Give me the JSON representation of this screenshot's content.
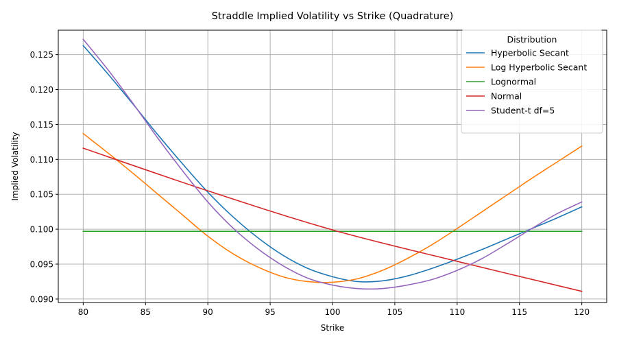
{
  "chart_data": {
    "type": "line",
    "title": "Straddle Implied Volatility vs Strike (Quadrature)",
    "xlabel": "Strike",
    "ylabel": "Implied Volatility",
    "xlim": [
      78,
      122
    ],
    "ylim": [
      0.0895,
      0.1285
    ],
    "xticks": [
      80,
      85,
      90,
      95,
      100,
      105,
      110,
      115,
      120
    ],
    "yticks": [
      0.09,
      0.095,
      0.1,
      0.105,
      0.11,
      0.115,
      0.12,
      0.125
    ],
    "ytick_labels": [
      "0.090",
      "0.095",
      "0.100",
      "0.105",
      "0.110",
      "0.115",
      "0.120",
      "0.125"
    ],
    "grid": true,
    "legend": {
      "title": "Distribution",
      "placement": "top-right"
    },
    "series": [
      {
        "name": "Hyperbolic Secant",
        "color": "#1f77b4",
        "x": [
          80,
          82,
          84,
          86,
          88,
          90,
          92,
          94,
          96,
          98,
          100,
          102,
          104,
          106,
          108,
          110,
          112,
          114,
          116,
          118,
          120
        ],
        "y": [
          0.1263,
          0.1222,
          0.1179,
          0.1135,
          0.1093,
          0.1053,
          0.1018,
          0.0988,
          0.0963,
          0.0944,
          0.0932,
          0.0925,
          0.0926,
          0.0933,
          0.0944,
          0.0957,
          0.0971,
          0.0986,
          0.1001,
          0.1016,
          0.1032
        ]
      },
      {
        "name": "Log Hyperbolic Secant",
        "color": "#ff7f0e",
        "x": [
          80,
          82,
          84,
          86,
          88,
          90,
          92,
          94,
          96,
          98,
          100,
          102,
          104,
          106,
          108,
          110,
          112,
          114,
          116,
          118,
          120
        ],
        "y": [
          0.1137,
          0.1109,
          0.108,
          0.105,
          0.102,
          0.099,
          0.0965,
          0.0946,
          0.0932,
          0.0925,
          0.0924,
          0.0929,
          0.0941,
          0.0958,
          0.0978,
          0.1001,
          0.1025,
          0.1049,
          0.1073,
          0.1096,
          0.1119
        ]
      },
      {
        "name": "Lognormal",
        "color": "#2ca02c",
        "x": [
          80,
          120
        ],
        "y": [
          0.0997,
          0.0997
        ]
      },
      {
        "name": "Normal",
        "color": "#d62728",
        "x": [
          80,
          90,
          100,
          110,
          120
        ],
        "y": [
          0.1116,
          0.1055,
          0.0999,
          0.0954,
          0.0911
        ]
      },
      {
        "name": "Student-t df=5",
        "color": "#9467bd",
        "x": [
          80,
          82,
          84,
          86,
          88,
          90,
          92,
          94,
          96,
          98,
          100,
          102,
          104,
          106,
          108,
          110,
          112,
          114,
          116,
          118,
          120
        ],
        "y": [
          0.1272,
          0.1228,
          0.118,
          0.113,
          0.1083,
          0.1039,
          0.1002,
          0.0972,
          0.0948,
          0.093,
          0.092,
          0.0915,
          0.0915,
          0.092,
          0.0928,
          0.0941,
          0.0958,
          0.0979,
          0.1001,
          0.1022,
          0.1039
        ]
      }
    ]
  }
}
